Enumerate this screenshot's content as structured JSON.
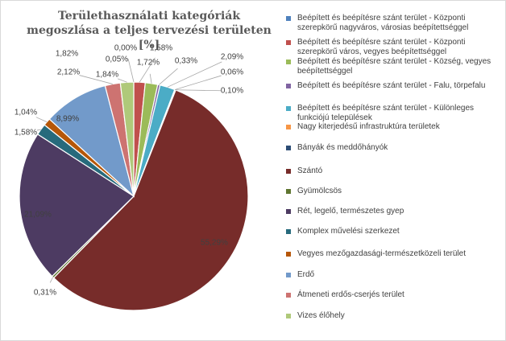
{
  "chart_data": {
    "type": "pie",
    "title": "Területhasználati kategóriák megoszlása a teljes tervezési területen [%]",
    "categories": [
      "Beépített és beépítésre szánt terület - Központi szerepkörű nagyváros, városias beépítettséggel",
      "Beépített és beépítésre szánt terület - Központi szerepkörű város, vegyes beépítettséggel",
      "Beépített és beépítésre szánt terület - Község, vegyes beépítettséggel",
      "Beépített és beépítésre szánt terület - Falu, törpefalu",
      "Beépített és beépítésre szánt terület - Különleges funkciójú települések",
      "Nagy kiterjedésű infrastruktúra területek",
      "Bányák és meddőhányók",
      "Szántó",
      "Gyümölcsös",
      "Rét, legelő, természetes gyep",
      "Komplex művelési szerkezet",
      "Vegyes mezőgazdasági-természetközeli terület",
      "Erdő",
      "Átmeneti erdős-cserjés terület",
      "Vizes élőhely"
    ],
    "values": [
      0.0,
      1.58,
      1.72,
      0.33,
      2.09,
      0.06,
      0.1,
      55.29,
      0.31,
      21.09,
      1.58,
      1.04,
      8.99,
      2.12,
      1.84
    ],
    "data_labels": [
      "0,00%",
      "1,58%",
      "1,72%",
      "0,33%",
      "2,09%",
      "0,06%",
      "0,10%",
      "55,29%",
      "0,31%",
      "21,09%",
      "1,58%",
      "1,04%",
      "8,99%",
      "2,12%",
      "1,84%"
    ],
    "extra_labels": [
      "1,82%",
      "0,05%"
    ],
    "colors": [
      "#4f81bd",
      "#c0504d",
      "#9bbb59",
      "#8064a2",
      "#4bacc6",
      "#f79646",
      "#2c4d75",
      "#772c2a",
      "#5f7530",
      "#4d3b62",
      "#276a7c",
      "#b65708",
      "#729aca",
      "#cd7371",
      "#afc97a"
    ],
    "legend_position": "right"
  }
}
